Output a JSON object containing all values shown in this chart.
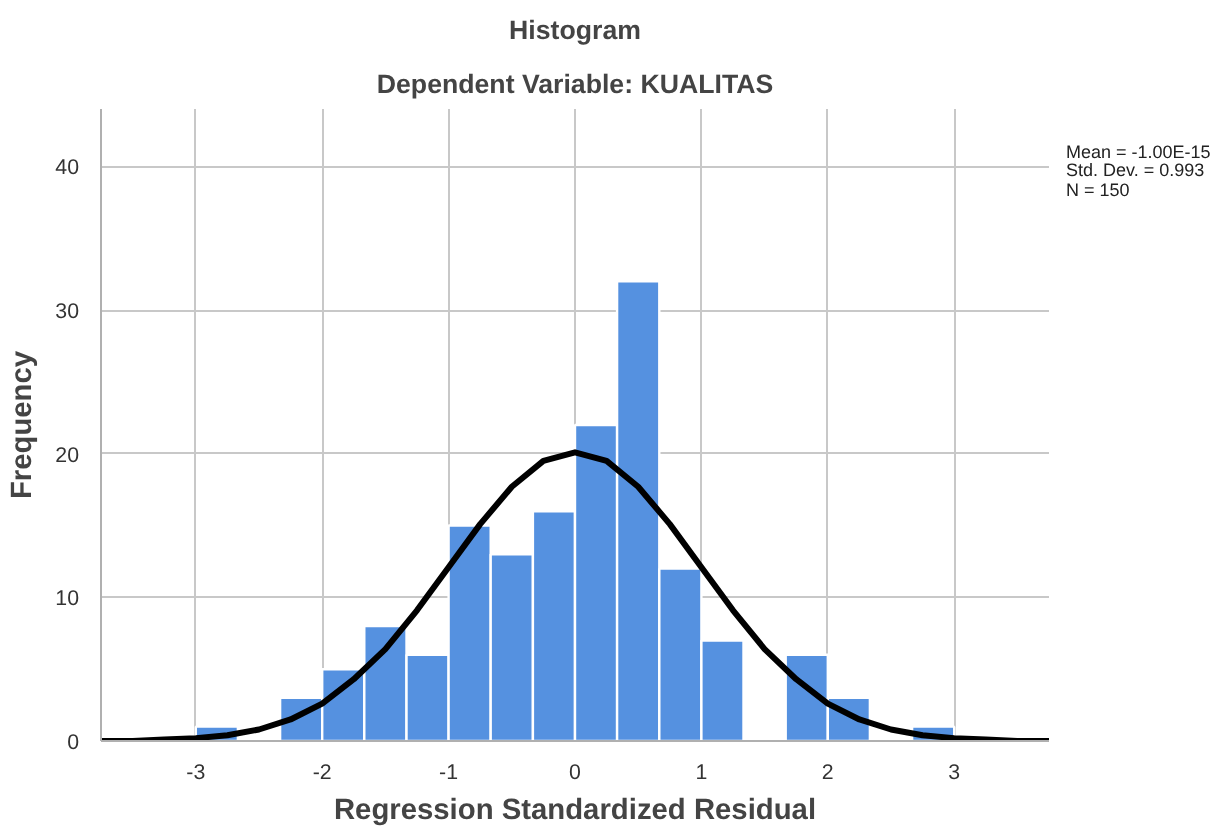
{
  "chart_data": {
    "type": "histogram",
    "title": "Histogram",
    "subtitle": "Dependent Variable: KUALITAS",
    "xlabel": "Regression Standardized Residual",
    "ylabel": "Frequency",
    "bins": [
      -3,
      -2.667,
      -2.333,
      -2,
      -1.667,
      -1.333,
      -1,
      -0.667,
      -0.333,
      0,
      0.333,
      0.667,
      1,
      1.333,
      1.667,
      2,
      2.333,
      2.667,
      3
    ],
    "values": [
      1,
      0,
      3,
      5,
      8,
      6,
      15,
      13,
      16,
      22,
      32,
      12,
      7,
      0,
      6,
      3,
      0,
      1
    ],
    "color": "#5591e0",
    "series": [
      {
        "type": "line",
        "color": "#000000",
        "x": [
          -3.75,
          -3.5,
          -3.25,
          -3,
          -2.75,
          -2.5,
          -2.25,
          -2,
          -1.75,
          -1.5,
          -1.25,
          -1,
          -0.75,
          -0.5,
          -0.25,
          0,
          0.25,
          0.5,
          0.75,
          1,
          1.25,
          1.5,
          1.75,
          2,
          2.25,
          2.5,
          2.75,
          3,
          3.25,
          3.5,
          3.75
        ],
        "values": [
          0,
          0,
          0.1,
          0.2,
          0.4,
          0.8,
          1.5,
          2.6,
          4.3,
          6.4,
          9.1,
          12.1,
          15.1,
          17.7,
          19.5,
          20.1,
          19.5,
          17.7,
          15.1,
          12.1,
          9.1,
          6.4,
          4.3,
          2.6,
          1.5,
          0.8,
          0.4,
          0.2,
          0.1,
          0,
          0
        ]
      }
    ],
    "xlim": [
      -3.75,
      3.75
    ],
    "ylim": [
      0,
      44
    ],
    "xticks": [
      -3,
      -2,
      -1,
      0,
      1,
      2,
      3
    ],
    "yticks": [
      0,
      10,
      20,
      30,
      40
    ],
    "grid": true,
    "annotations": [
      "Mean = -1.00E-15",
      "Std. Dev. = 0.993",
      "N = 150"
    ]
  }
}
